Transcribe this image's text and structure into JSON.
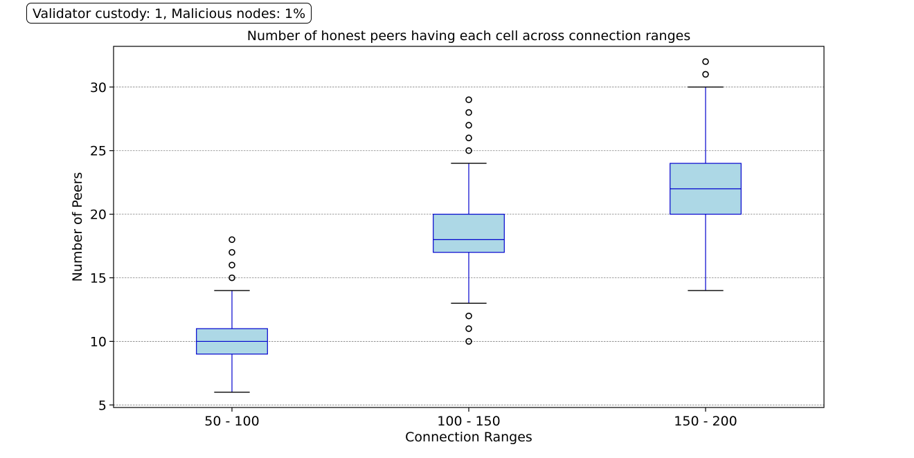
{
  "annotation": "Validator custody: 1, Malicious nodes: 1%",
  "chart_data": {
    "type": "box",
    "title": "Number of honest peers having each cell across connection ranges",
    "xlabel": "Connection Ranges",
    "ylabel": "Number of Peers",
    "categories": [
      "50 - 100",
      "100 - 150",
      "150 - 200"
    ],
    "yticks": [
      5,
      10,
      15,
      20,
      25,
      30
    ],
    "ylim": [
      4.8,
      33.2
    ],
    "grid": "y",
    "boxes": [
      {
        "category": "50 - 100",
        "whisker_low": 6,
        "q1": 9,
        "median": 10,
        "q3": 11,
        "whisker_high": 14,
        "outliers": [
          15,
          16,
          17,
          18
        ]
      },
      {
        "category": "100 - 150",
        "whisker_low": 13,
        "q1": 17,
        "median": 18,
        "q3": 20,
        "whisker_high": 24,
        "outliers": [
          10,
          11,
          12,
          25,
          26,
          27,
          28,
          29
        ]
      },
      {
        "category": "150 - 200",
        "whisker_low": 14,
        "q1": 20,
        "median": 22,
        "q3": 24,
        "whisker_high": 30,
        "outliers": [
          31,
          32
        ]
      }
    ],
    "colors": {
      "box_fill": "#add8e6",
      "box_edge": "#0000cd",
      "grid": "#808080",
      "outlier_edge": "#000000"
    }
  }
}
